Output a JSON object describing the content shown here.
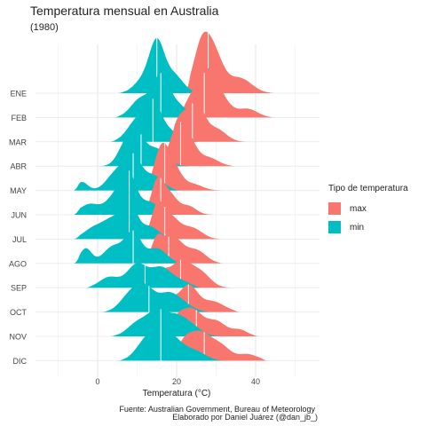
{
  "chart_data": {
    "type": "ridgeline",
    "title": "Temperatura mensual en Australia",
    "subtitle": "(1980)",
    "xlabel": "Temperatura (°C)",
    "ylabel": "",
    "xlim": [
      -11,
      52
    ],
    "xticks": [
      0,
      20,
      40
    ],
    "grid": true,
    "legend": {
      "title": "Tipo de temperatura",
      "placement": "right",
      "entries": [
        {
          "label": "max",
          "color": "#F8766D"
        },
        {
          "label": "min",
          "color": "#00BFC4"
        }
      ]
    },
    "categories": [
      "ENE",
      "FEB",
      "MAR",
      "ABR",
      "MAY",
      "JUN",
      "JUL",
      "AGO",
      "SEP",
      "OCT",
      "NOV",
      "DIC"
    ],
    "series": [
      {
        "name": "max",
        "color": "#F8766D",
        "ridges": [
          {
            "month": "ENE",
            "min": 22,
            "max": 45,
            "peaks": [
              [
                26,
                0.8,
                2.0
              ],
              [
                29,
                1.0,
                2.5
              ],
              [
                36,
                0.35,
                3.0
              ]
            ],
            "median": 28
          },
          {
            "month": "FEB",
            "min": 20,
            "max": 45,
            "peaks": [
              [
                24,
                0.5,
                1.8
              ],
              [
                28,
                0.9,
                2.0
              ],
              [
                31,
                0.45,
                2.5
              ],
              [
                38,
                0.2,
                2.5
              ]
            ],
            "median": 27
          },
          {
            "month": "MAR",
            "min": 18,
            "max": 40,
            "peaks": [
              [
                21,
                0.55,
                1.8
              ],
              [
                25,
                0.85,
                2.0
              ],
              [
                30,
                0.3,
                2.5
              ]
            ],
            "median": 24
          },
          {
            "month": "ABR",
            "min": 15,
            "max": 35,
            "peaks": [
              [
                20,
                0.8,
                2.0
              ],
              [
                23,
                0.55,
                2.0
              ],
              [
                28,
                0.2,
                2.5
              ]
            ],
            "median": 21
          },
          {
            "month": "MAY",
            "min": 12,
            "max": 32,
            "peaks": [
              [
                16,
                0.9,
                1.8
              ],
              [
                19,
                0.55,
                2.0
              ],
              [
                24,
                0.15,
                2.5
              ]
            ],
            "median": 17
          },
          {
            "month": "JUN",
            "min": 11,
            "max": 30,
            "peaks": [
              [
                15,
                0.7,
                1.5
              ],
              [
                18,
                0.5,
                2.0
              ],
              [
                23,
                0.2,
                2.0
              ]
            ],
            "median": 16
          },
          {
            "month": "JUL",
            "min": 11,
            "max": 32,
            "peaks": [
              [
                15,
                0.6,
                1.5
              ],
              [
                18,
                0.55,
                2.5
              ],
              [
                24,
                0.25,
                2.5
              ]
            ],
            "median": 17
          },
          {
            "month": "AGO",
            "min": 12,
            "max": 32,
            "peaks": [
              [
                15,
                0.5,
                1.5
              ],
              [
                19,
                0.6,
                2.5
              ],
              [
                25,
                0.3,
                2.5
              ]
            ],
            "median": 18
          },
          {
            "month": "SEP",
            "min": 13,
            "max": 34,
            "peaks": [
              [
                16,
                0.35,
                1.8
              ],
              [
                21,
                0.6,
                2.5
              ],
              [
                26,
                0.35,
                2.5
              ]
            ],
            "median": 21
          },
          {
            "month": "OCT",
            "min": 15,
            "max": 36,
            "peaks": [
              [
                18,
                0.3,
                2.0
              ],
              [
                23,
                0.6,
                2.2
              ],
              [
                29,
                0.25,
                3.0
              ]
            ],
            "median": 23
          },
          {
            "month": "NOV",
            "min": 16,
            "max": 41,
            "peaks": [
              [
                20,
                0.35,
                2.0
              ],
              [
                24,
                0.6,
                2.5
              ],
              [
                30,
                0.35,
                2.5
              ],
              [
                36,
                0.15,
                2.0
              ]
            ],
            "median": 25
          },
          {
            "month": "DIC",
            "min": 17,
            "max": 43,
            "peaks": [
              [
                22,
                0.4,
                2.0
              ],
              [
                26,
                0.6,
                2.5
              ],
              [
                31,
                0.35,
                2.5
              ],
              [
                38,
                0.15,
                2.5
              ]
            ],
            "median": 27
          }
        ]
      },
      {
        "name": "min",
        "color": "#00BFC4",
        "ridges": [
          {
            "month": "ENE",
            "min": 5,
            "max": 30,
            "peaks": [
              [
                12,
                0.35,
                2.5
              ],
              [
                15,
                1.0,
                1.8
              ],
              [
                19,
                0.45,
                2.5
              ]
            ],
            "median": 15
          },
          {
            "month": "FEB",
            "min": 4,
            "max": 29,
            "peaks": [
              [
                11,
                0.45,
                2.5
              ],
              [
                16,
                0.9,
                2.0
              ],
              [
                20,
                0.3,
                2.5
              ]
            ],
            "median": 16
          },
          {
            "month": "MAR",
            "min": 3,
            "max": 27,
            "peaks": [
              [
                10,
                0.5,
                2.5
              ],
              [
                14,
                0.8,
                2.0
              ],
              [
                18,
                0.25,
                2.5
              ]
            ],
            "median": 14
          },
          {
            "month": "ABR",
            "min": 0,
            "max": 24,
            "peaks": [
              [
                7,
                0.45,
                2.0
              ],
              [
                10,
                0.65,
                2.0
              ],
              [
                15,
                0.4,
                2.5
              ]
            ],
            "median": 11
          },
          {
            "month": "MAY",
            "min": -6,
            "max": 21,
            "peaks": [
              [
                -4,
                0.2,
                1.5
              ],
              [
                5,
                0.45,
                2.5
              ],
              [
                9,
                0.7,
                2.0
              ],
              [
                14,
                0.35,
                2.5
              ]
            ],
            "median": 9
          },
          {
            "month": "JUN",
            "min": -6,
            "max": 20,
            "peaks": [
              [
                -2,
                0.25,
                2.5
              ],
              [
                5,
                0.5,
                2.5
              ],
              [
                8,
                0.75,
                1.8
              ],
              [
                13,
                0.3,
                2.5
              ]
            ],
            "median": 8
          },
          {
            "month": "JUL",
            "min": -6,
            "max": 21,
            "peaks": [
              [
                -1,
                0.25,
                2.5
              ],
              [
                4,
                0.45,
                2.5
              ],
              [
                8,
                0.8,
                1.8
              ],
              [
                13,
                0.3,
                2.5
              ]
            ],
            "median": 8
          },
          {
            "month": "AGO",
            "min": -6,
            "max": 22,
            "peaks": [
              [
                -3,
                0.35,
                1.5
              ],
              [
                4,
                0.4,
                2.5
              ],
              [
                9,
                0.7,
                2.0
              ],
              [
                15,
                0.35,
                2.5
              ]
            ],
            "median": 9
          },
          {
            "month": "SEP",
            "min": -3,
            "max": 26,
            "peaks": [
              [
                3,
                0.25,
                2.5
              ],
              [
                10,
                0.55,
                2.5
              ],
              [
                16,
                0.45,
                2.5
              ],
              [
                21,
                0.15,
                2.5
              ]
            ],
            "median": 12
          },
          {
            "month": "OCT",
            "min": 1,
            "max": 28,
            "peaks": [
              [
                8,
                0.35,
                2.5
              ],
              [
                12,
                0.55,
                2.5
              ],
              [
                18,
                0.4,
                2.5
              ],
              [
                22,
                0.15,
                2.5
              ]
            ],
            "median": 13
          },
          {
            "month": "NOV",
            "min": 3,
            "max": 31,
            "peaks": [
              [
                10,
                0.3,
                2.5
              ],
              [
                15,
                0.55,
                2.5
              ],
              [
                20,
                0.4,
                2.5
              ],
              [
                24,
                0.2,
                2.5
              ]
            ],
            "median": 16
          },
          {
            "month": "DIC",
            "min": 5,
            "max": 33,
            "peaks": [
              [
                12,
                0.4,
                2.5
              ],
              [
                16,
                0.6,
                2.5
              ],
              [
                20,
                0.35,
                2.5
              ],
              [
                25,
                0.2,
                2.5
              ]
            ],
            "median": 16
          }
        ]
      }
    ],
    "caption": [
      "Fuente: Australian Government, Bureau of Meteorology",
      "Elaborado por Daniel Juárez (@dan_jb_)"
    ]
  }
}
